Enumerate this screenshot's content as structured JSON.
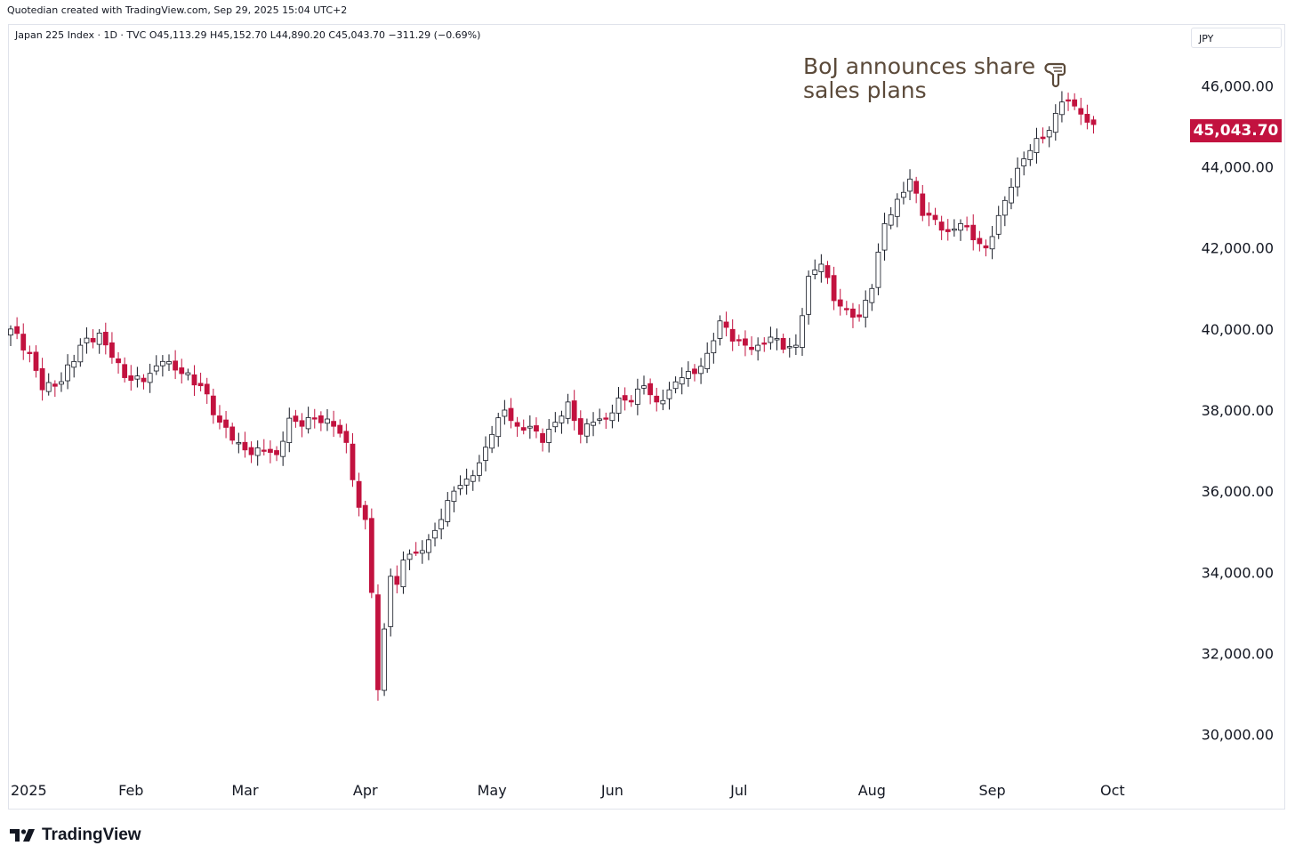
{
  "header": {
    "attribution": "Quotedian created with TradingView.com, Sep 29, 2025 15:04 UTC+2"
  },
  "legend": {
    "text": "Japan 225 Index · 1D · TVC  O45,113.29  H45,152.70  L44,890.20  C45,043.70  −311.29 (−0.69%)"
  },
  "currency_label": "JPY",
  "annotation": {
    "line1": "BoJ announces share",
    "line2": "sales plans",
    "icon": "pointing-hand-icon"
  },
  "last_price_label": "45,043.70",
  "brand": {
    "name": "TradingView",
    "icon": "tradingview-logo-icon"
  },
  "colors": {
    "up": "#ffffff",
    "down": "#c2123f",
    "wick": "#131722",
    "last_price_bg": "#c2123f",
    "annotation": "#5b4a3a"
  },
  "chart_data": {
    "type": "candlestick",
    "ylim": [
      29200,
      46800
    ],
    "y_ticks": [
      {
        "value": 30000,
        "label": "30,000.00"
      },
      {
        "value": 32000,
        "label": "32,000.00"
      },
      {
        "value": 34000,
        "label": "34,000.00"
      },
      {
        "value": 36000,
        "label": "36,000.00"
      },
      {
        "value": 38000,
        "label": "38,000.00"
      },
      {
        "value": 40000,
        "label": "40,000.00"
      },
      {
        "value": 42000,
        "label": "42,000.00"
      },
      {
        "value": 44000,
        "label": "44,000.00"
      },
      {
        "value": 46000,
        "label": "46,000.00"
      }
    ],
    "x_ticks": [
      {
        "index": 0,
        "label": "2025"
      },
      {
        "index": 19,
        "label": "Feb"
      },
      {
        "index": 37,
        "label": "Mar"
      },
      {
        "index": 56,
        "label": "Apr"
      },
      {
        "index": 76,
        "label": "May"
      },
      {
        "index": 95,
        "label": "Jun"
      },
      {
        "index": 115,
        "label": "Jul"
      },
      {
        "index": 136,
        "label": "Aug"
      },
      {
        "index": 155,
        "label": "Sep"
      },
      {
        "index": 174,
        "label": "Oct"
      }
    ],
    "anchors": [
      [
        0,
        40000
      ],
      [
        3,
        39400
      ],
      [
        5,
        38500
      ],
      [
        8,
        38700
      ],
      [
        11,
        39600
      ],
      [
        14,
        39900
      ],
      [
        16,
        39300
      ],
      [
        18,
        38800
      ],
      [
        21,
        38700
      ],
      [
        24,
        39200
      ],
      [
        27,
        38900
      ],
      [
        30,
        38600
      ],
      [
        33,
        37700
      ],
      [
        36,
        37200
      ],
      [
        38,
        36900
      ],
      [
        40,
        37000
      ],
      [
        42,
        36900
      ],
      [
        44,
        37800
      ],
      [
        46,
        37600
      ],
      [
        48,
        37800
      ],
      [
        51,
        37600
      ],
      [
        53,
        37200
      ],
      [
        55,
        35600
      ],
      [
        56,
        35300
      ],
      [
        57,
        33500
      ],
      [
        58,
        31100
      ],
      [
        59,
        32600
      ],
      [
        60,
        33900
      ],
      [
        61,
        33700
      ],
      [
        62,
        34300
      ],
      [
        64,
        34500
      ],
      [
        66,
        34800
      ],
      [
        68,
        35300
      ],
      [
        70,
        36000
      ],
      [
        72,
        36300
      ],
      [
        74,
        36700
      ],
      [
        76,
        37400
      ],
      [
        78,
        38000
      ],
      [
        80,
        37600
      ],
      [
        82,
        37600
      ],
      [
        84,
        37200
      ],
      [
        86,
        37700
      ],
      [
        88,
        38200
      ],
      [
        90,
        37400
      ],
      [
        92,
        37700
      ],
      [
        94,
        37800
      ],
      [
        96,
        38300
      ],
      [
        98,
        38200
      ],
      [
        100,
        38600
      ],
      [
        102,
        38200
      ],
      [
        104,
        38500
      ],
      [
        106,
        38800
      ],
      [
        108,
        38900
      ],
      [
        110,
        39400
      ],
      [
        112,
        40200
      ],
      [
        114,
        39700
      ],
      [
        116,
        39600
      ],
      [
        118,
        39600
      ],
      [
        120,
        39800
      ],
      [
        122,
        39500
      ],
      [
        124,
        39600
      ],
      [
        126,
        41300
      ],
      [
        128,
        41600
      ],
      [
        130,
        40700
      ],
      [
        132,
        40500
      ],
      [
        134,
        40300
      ],
      [
        136,
        41000
      ],
      [
        138,
        42600
      ],
      [
        140,
        43200
      ],
      [
        142,
        43700
      ],
      [
        144,
        42800
      ],
      [
        146,
        42700
      ],
      [
        148,
        42400
      ],
      [
        150,
        42600
      ],
      [
        152,
        42200
      ],
      [
        154,
        42000
      ],
      [
        156,
        42800
      ],
      [
        158,
        43500
      ],
      [
        160,
        44200
      ],
      [
        162,
        44700
      ],
      [
        164,
        44900
      ],
      [
        166,
        45600
      ],
      [
        168,
        45500
      ],
      [
        169,
        45300
      ],
      [
        170,
        45100
      ],
      [
        171,
        45043.7
      ]
    ]
  }
}
